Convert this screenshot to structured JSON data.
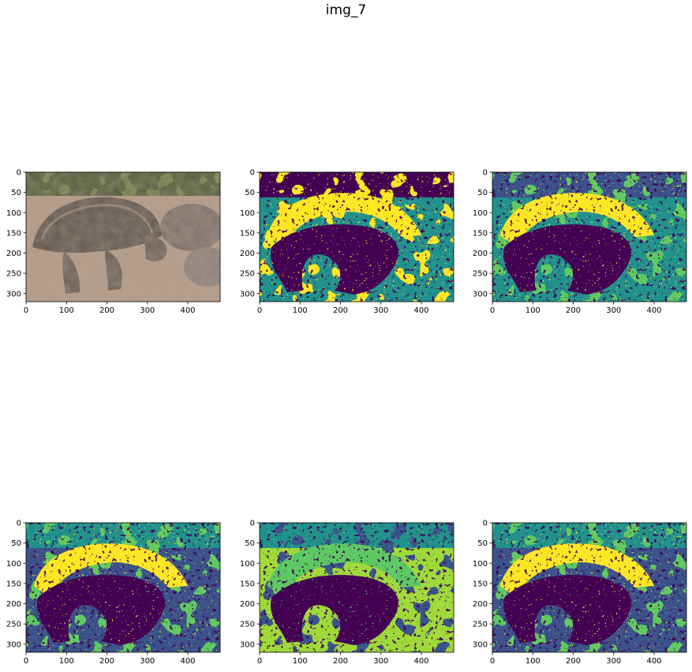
{
  "figure": {
    "title": "img_7",
    "panels": [
      {
        "name": "original-photo",
        "kind": "photo"
      },
      {
        "name": "segmentation-2",
        "kind": "segmentation",
        "palette": [
          "#440154",
          "#21918c",
          "#fde725"
        ]
      },
      {
        "name": "segmentation-3",
        "kind": "segmentation",
        "palette": [
          "#3b528b",
          "#21918c",
          "#5ec962",
          "#fde725",
          "#440154"
        ]
      },
      {
        "name": "segmentation-4",
        "kind": "segmentation",
        "palette": [
          "#21918c",
          "#3b528b",
          "#5ec962",
          "#fde725",
          "#440154"
        ]
      },
      {
        "name": "segmentation-5",
        "kind": "segmentation",
        "palette": [
          "#21918c",
          "#a0da39",
          "#3b528b",
          "#5ec962",
          "#440154"
        ]
      },
      {
        "name": "segmentation-6",
        "kind": "segmentation",
        "palette": [
          "#21918c",
          "#3b528b",
          "#5ec962",
          "#fde725",
          "#440154"
        ]
      }
    ],
    "x_axis": {
      "range": [
        0,
        480
      ],
      "ticks": [
        "0",
        "100",
        "200",
        "300",
        "400"
      ]
    },
    "y_axis": {
      "range": [
        320,
        0
      ],
      "ticks": [
        "0",
        "50",
        "100",
        "150",
        "200",
        "250",
        "300"
      ]
    }
  }
}
